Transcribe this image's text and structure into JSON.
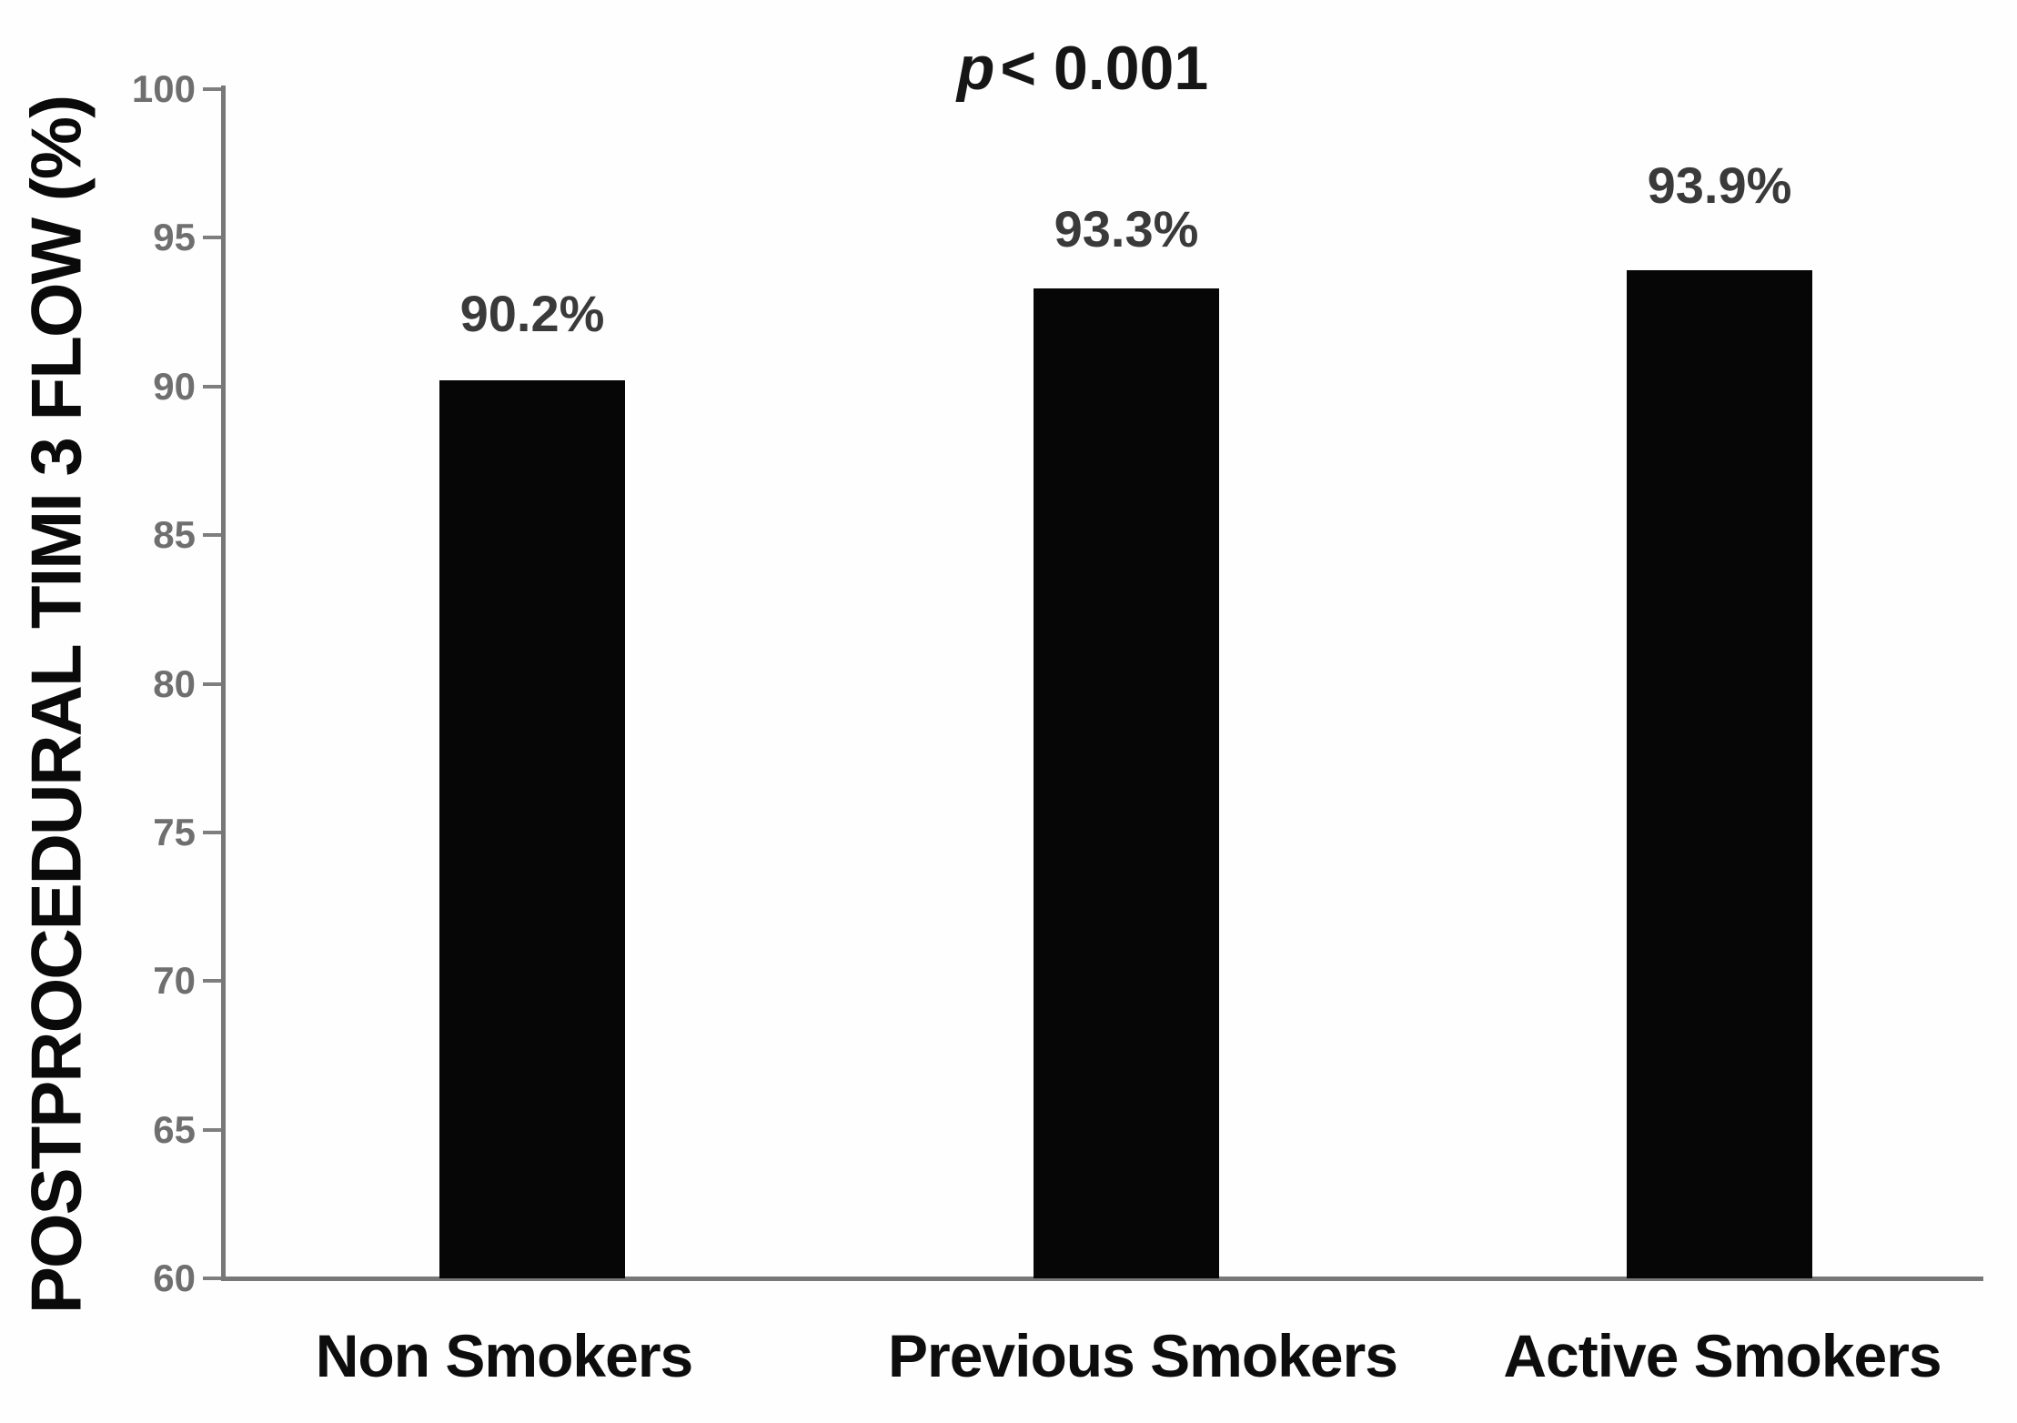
{
  "chart_data": {
    "type": "bar",
    "title": {
      "prefix_italic": "p",
      "rest": "< 0.001"
    },
    "ylabel": "POSTPROCEDURAL TIMI 3 FLOW (%)",
    "xlabel": "",
    "categories": [
      "Non Smokers",
      "Previous Smokers",
      "Active Smokers"
    ],
    "values": [
      90.2,
      93.3,
      93.9
    ],
    "value_labels": [
      "90.2%",
      "93.3%",
      "93.9%"
    ],
    "ylim": [
      60,
      100
    ],
    "yticks": [
      60,
      65,
      70,
      75,
      80,
      85,
      90,
      95,
      100
    ],
    "grid": false,
    "legend": null,
    "bar_color": "#060606",
    "axis_color": "#787878",
    "tick_label_color": "#6f6f6f",
    "value_label_color": "#3a3a3a",
    "text_color": "#0d0d0d"
  }
}
